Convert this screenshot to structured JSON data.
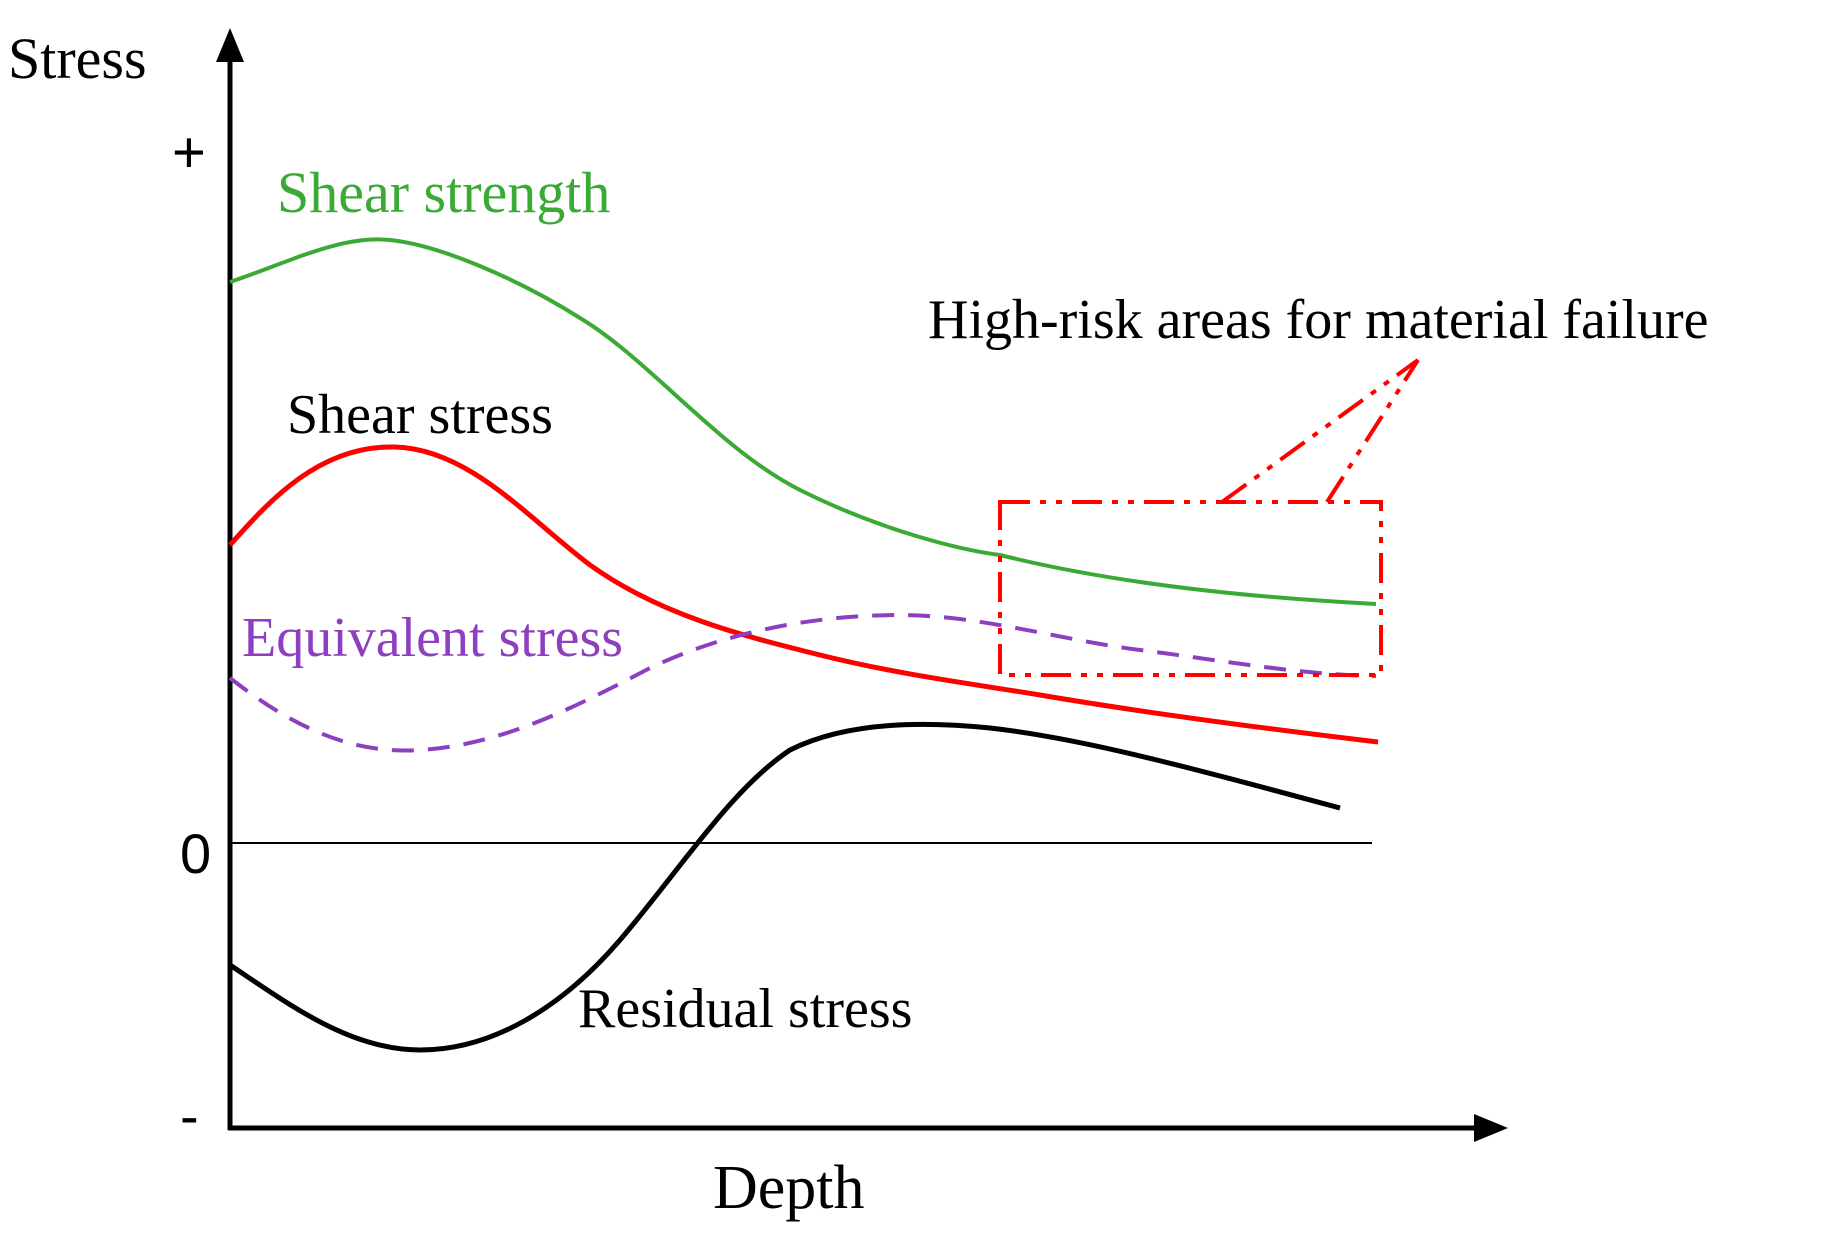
{
  "axes": {
    "y_label": "Stress",
    "x_label": "Depth",
    "y_positive_mark": "+",
    "y_zero_mark": "0",
    "y_negative_mark": "-"
  },
  "curves": {
    "shear_strength": {
      "label": "Shear strength",
      "color": "#3aaa35"
    },
    "shear_stress": {
      "label": "Shear stress",
      "color": "#ff0000"
    },
    "equivalent_stress": {
      "label": "Equivalent stress",
      "color": "#8e3fbf"
    },
    "residual_stress": {
      "label": "Residual stress",
      "color": "#000000"
    }
  },
  "annotation": {
    "label": "High-risk areas for material failure",
    "color": "#ff0000"
  }
}
